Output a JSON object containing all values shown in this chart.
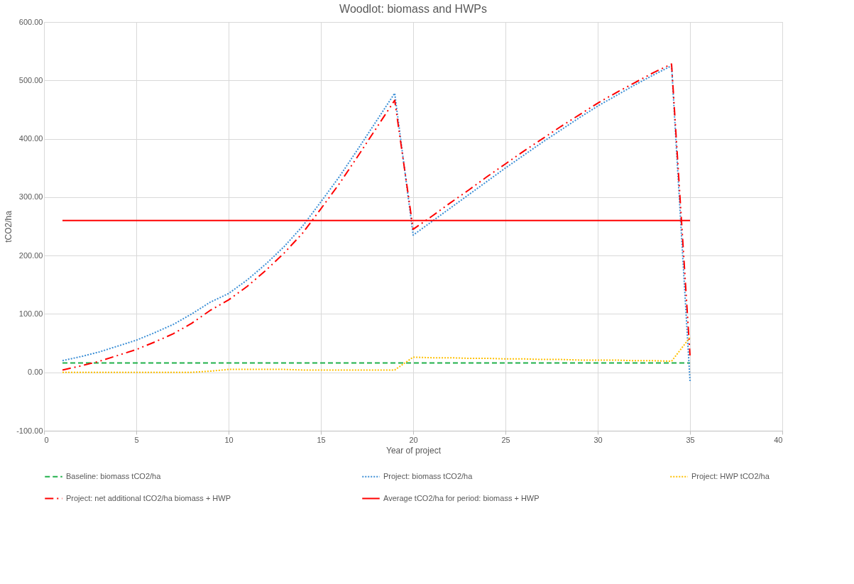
{
  "chart_data": {
    "type": "line",
    "title": "Woodlot: biomass and HWPs",
    "xlabel": "Year of project",
    "ylabel": "tCO2/ha",
    "x": [
      1,
      2,
      3,
      4,
      5,
      6,
      7,
      8,
      9,
      10,
      11,
      12,
      13,
      14,
      15,
      16,
      17,
      18,
      19,
      20,
      21,
      22,
      23,
      24,
      25,
      26,
      27,
      28,
      29,
      30,
      31,
      32,
      33,
      34,
      35
    ],
    "series": [
      {
        "name": "Baseline: biomass tCO2/ha",
        "color": "#21b14b",
        "line_style": "dashed",
        "values": [
          16,
          16,
          16,
          16,
          16,
          16,
          16,
          16,
          16,
          16,
          16,
          16,
          16,
          16,
          16,
          16,
          16,
          16,
          16,
          16,
          16,
          16,
          16,
          16,
          16,
          16,
          16,
          16,
          16,
          16,
          16,
          16,
          16,
          16,
          16
        ]
      },
      {
        "name": "Project: biomass tCO2/ha",
        "color": "#3c8fd6",
        "line_style": "dotted",
        "values": [
          20,
          27,
          35,
          45,
          55,
          68,
          82,
          100,
          120,
          135,
          158,
          185,
          215,
          250,
          292,
          335,
          382,
          430,
          478,
          235,
          258,
          281,
          304,
          327,
          350,
          372,
          394,
          415,
          436,
          456,
          474,
          492,
          509,
          525,
          -15
        ]
      },
      {
        "name": "Project: HWP tCO2/ha",
        "color": "#ffc000",
        "line_style": "dotted",
        "values": [
          0,
          0,
          0,
          0,
          0,
          0,
          0,
          0,
          2,
          5,
          5,
          5,
          5,
          4,
          4,
          4,
          4,
          4,
          4,
          26,
          25,
          25,
          24,
          24,
          23,
          23,
          22,
          22,
          21,
          21,
          21,
          20,
          20,
          19,
          60
        ]
      },
      {
        "name": "Project: net additional tCO2/ha biomass + HWP",
        "color": "#ff0000",
        "line_style": "dashdot",
        "values": [
          4,
          11,
          19,
          29,
          39,
          52,
          66,
          84,
          106,
          124,
          147,
          174,
          204,
          238,
          280,
          323,
          370,
          418,
          466,
          245,
          267,
          290,
          312,
          335,
          357,
          379,
          400,
          421,
          441,
          461,
          479,
          496,
          513,
          528,
          29
        ]
      },
      {
        "name": "Average tCO2/ha for period: biomass + HWP",
        "color": "#ff0000",
        "line_style": "solid",
        "x": [
          1,
          35
        ],
        "values": [
          260,
          260
        ]
      }
    ],
    "xlim": [
      0,
      40
    ],
    "xticks": [
      0,
      5,
      10,
      15,
      20,
      25,
      30,
      35,
      40
    ],
    "ylim": [
      -100,
      600
    ],
    "yticks": [
      {
        "value": -100,
        "label": "-100.00"
      },
      {
        "value": 0,
        "label": "0.00"
      },
      {
        "value": 100,
        "label": "100.00"
      },
      {
        "value": 200,
        "label": "200.00"
      },
      {
        "value": 300,
        "label": "300.00"
      },
      {
        "value": 400,
        "label": "400.00"
      },
      {
        "value": 500,
        "label": "500.00"
      },
      {
        "value": 600,
        "label": "600.00"
      }
    ],
    "grid": true,
    "legend": "bottom",
    "marker": "none"
  }
}
